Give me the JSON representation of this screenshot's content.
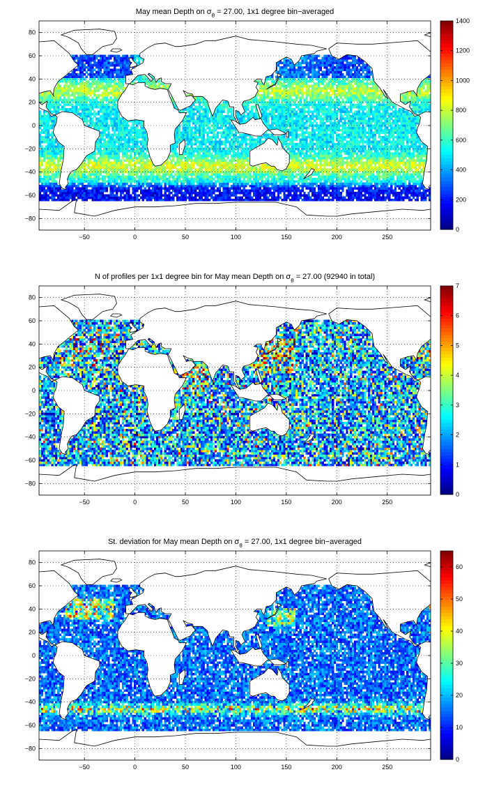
{
  "figure": {
    "colormap": "jet",
    "continent_color": "#ffffff",
    "outline_color": "#000000",
    "grid_style": "dotted"
  },
  "chart_data": [
    {
      "type": "heatmap",
      "title_pre": "May mean Depth on σ",
      "title_sub": "θ",
      "title_post": " = 27.00, 1x1 degree bin−averaged",
      "xlim": [
        -95,
        293
      ],
      "ylim": [
        -90,
        90
      ],
      "xticks": [
        -50,
        0,
        50,
        100,
        150,
        200,
        250
      ],
      "xtick_labels": [
        "−50",
        "0",
        "50",
        "100",
        "150",
        "200",
        "250"
      ],
      "yticks": [
        80,
        60,
        40,
        20,
        0,
        -20,
        -40,
        -60,
        -80
      ],
      "ytick_labels": [
        "80",
        "60",
        "40",
        "20",
        "0",
        "−20",
        "−40",
        "−60",
        "−80"
      ],
      "grid": true,
      "colorbar": {
        "range": [
          0,
          1400
        ],
        "ticks": [
          0,
          200,
          400,
          600,
          800,
          1000,
          1200,
          1400
        ],
        "tick_labels": [
          "0",
          "200",
          "400",
          "600",
          "800",
          "1000",
          "1200",
          "1400"
        ]
      },
      "field": "depth",
      "data_lat_range": [
        -65,
        60
      ]
    },
    {
      "type": "heatmap",
      "title_pre": "N of profiles per 1x1 degree bin for May mean Depth on σ",
      "title_sub": "θ",
      "title_post": " = 27.00 (92940 in total)",
      "xlim": [
        -95,
        293
      ],
      "ylim": [
        -90,
        90
      ],
      "xticks": [
        -50,
        0,
        50,
        100,
        150,
        200,
        250
      ],
      "xtick_labels": [
        "−50",
        "0",
        "50",
        "100",
        "150",
        "200",
        "250"
      ],
      "yticks": [
        80,
        60,
        40,
        20,
        0,
        -20,
        -40,
        -60,
        -80
      ],
      "ytick_labels": [
        "80",
        "60",
        "40",
        "20",
        "0",
        "−20",
        "−40",
        "−60",
        "−80"
      ],
      "grid": true,
      "colorbar": {
        "range": [
          0,
          7
        ],
        "ticks": [
          0,
          1,
          2,
          3,
          4,
          5,
          6,
          7
        ],
        "tick_labels": [
          "0",
          "1",
          "2",
          "3",
          "4",
          "5",
          "6",
          "7"
        ]
      },
      "field": "count",
      "total_profiles": 92940,
      "data_lat_range": [
        -65,
        60
      ]
    },
    {
      "type": "heatmap",
      "title_pre": "St. deviation for May mean Depth on σ",
      "title_sub": "θ",
      "title_post": " = 27.00, 1x1 degree bin−averaged",
      "xlim": [
        -95,
        293
      ],
      "ylim": [
        -90,
        90
      ],
      "xticks": [
        -50,
        0,
        50,
        100,
        150,
        200,
        250
      ],
      "xtick_labels": [
        "−50",
        "0",
        "50",
        "100",
        "150",
        "200",
        "250"
      ],
      "yticks": [
        80,
        60,
        40,
        20,
        0,
        -20,
        -40,
        -60,
        -80
      ],
      "ytick_labels": [
        "80",
        "60",
        "40",
        "20",
        "0",
        "−20",
        "−40",
        "−60",
        "−80"
      ],
      "grid": true,
      "colorbar": {
        "range": [
          0,
          65
        ],
        "ticks": [
          0,
          10,
          20,
          30,
          40,
          50,
          60
        ],
        "tick_labels": [
          "0",
          "10",
          "20",
          "30",
          "40",
          "50",
          "60"
        ]
      },
      "field": "std",
      "data_lat_range": [
        -65,
        60
      ]
    }
  ]
}
